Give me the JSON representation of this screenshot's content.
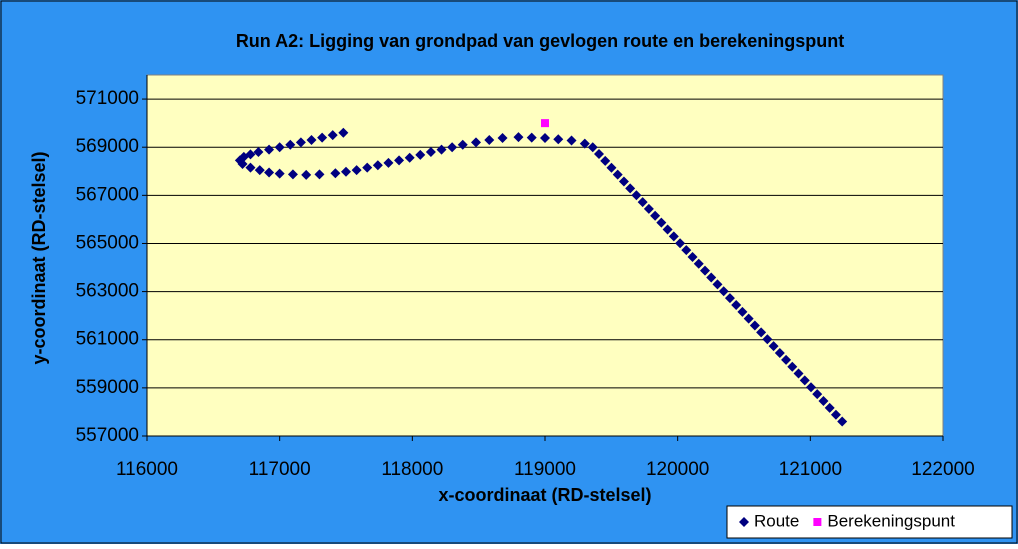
{
  "chart_data": {
    "type": "scatter",
    "title": "Run A2: Ligging van grondpad van gevlogen route en berekeningspunt",
    "x_label": "x-coordinaat (RD-stelsel)",
    "y_label": "y-coordinaat (RD-stelsel)",
    "xlim": [
      116000,
      122000
    ],
    "ylim": [
      557000,
      572000
    ],
    "xticks": [
      116000,
      117000,
      118000,
      119000,
      120000,
      121000,
      122000
    ],
    "yticks": [
      557000,
      559000,
      561000,
      563000,
      565000,
      567000,
      569000,
      571000
    ],
    "grid": true,
    "legend": "bottom-right",
    "series": [
      {
        "name": "Route",
        "color": "#000080",
        "marker": "diamond",
        "x": [
          117480,
          117400,
          117320,
          117240,
          117160,
          117080,
          117000,
          116920,
          116840,
          116780,
          116730,
          116700,
          116720,
          116780,
          116850,
          116920,
          117000,
          117100,
          117200,
          117300,
          117420,
          117500,
          117580,
          117660,
          117740,
          117820,
          117900,
          117980,
          118060,
          118140,
          118220,
          118300,
          118380,
          118480,
          118580,
          118680,
          118800,
          118900,
          119000,
          119100,
          119200,
          119300,
          119360,
          119407,
          119454,
          119501,
          119548,
          119595,
          119642,
          119689,
          119736,
          119783,
          119830,
          119877,
          119924,
          119971,
          120018,
          120065,
          120112,
          120159,
          120206,
          120253,
          120300,
          120347,
          120394,
          120441,
          120488,
          120535,
          120582,
          120629,
          120676,
          120723,
          120770,
          120817,
          120864,
          120911,
          120958,
          121005,
          121052,
          121099,
          121146,
          121193,
          121240
        ],
        "values": [
          569600,
          569500,
          569400,
          569300,
          569200,
          569100,
          569000,
          568900,
          568800,
          568700,
          568600,
          568450,
          568300,
          568150,
          568050,
          567950,
          567900,
          567870,
          567850,
          567870,
          567920,
          567980,
          568050,
          568150,
          568250,
          568350,
          568450,
          568560,
          568680,
          568800,
          568900,
          569000,
          569100,
          569200,
          569300,
          569380,
          569420,
          569400,
          569380,
          569330,
          569280,
          569150,
          569000,
          568715,
          568430,
          568145,
          567860,
          567575,
          567290,
          567005,
          566720,
          566435,
          566150,
          565865,
          565580,
          565295,
          565010,
          564725,
          564440,
          564155,
          563870,
          563585,
          563300,
          563015,
          562730,
          562445,
          562160,
          561875,
          561590,
          561305,
          561020,
          560735,
          560450,
          560165,
          559880,
          559595,
          559310,
          559025,
          558740,
          558455,
          558170,
          557885,
          557600
        ]
      },
      {
        "name": "Berekeningspunt",
        "color": "#ff00ff",
        "marker": "square",
        "x": [
          119000
        ],
        "values": [
          570000
        ]
      }
    ]
  }
}
